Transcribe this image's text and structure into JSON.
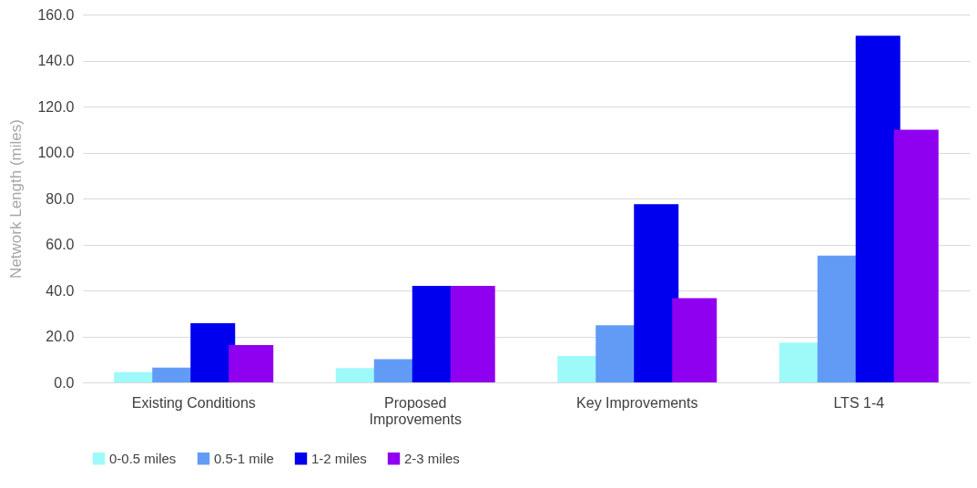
{
  "chart_data": {
    "type": "bar",
    "ylabel": "Network Length (miles)",
    "categories": [
      "Existing Conditions",
      "Proposed Improvements",
      "Key Improvements",
      "LTS 1-4"
    ],
    "series": [
      {
        "name": "0-0.5 miles",
        "color": "#9ef9f9",
        "values": [
          4.5,
          6.2,
          11.5,
          17.3
        ]
      },
      {
        "name": "0.5-1 mile",
        "color": "#619bf6",
        "values": [
          6.4,
          10.1,
          24.9,
          55.1
        ]
      },
      {
        "name": "1-2 miles",
        "color": "#0000ee",
        "values": [
          25.7,
          42.0,
          77.5,
          150.8
        ]
      },
      {
        "name": "2-3 miles",
        "color": "#8f00f0",
        "values": [
          16.2,
          42.0,
          36.6,
          109.9
        ]
      }
    ],
    "ylim": [
      0,
      160
    ],
    "yticks": [
      {
        "value": 0,
        "label": "0.0"
      },
      {
        "value": 20,
        "label": "20.0"
      },
      {
        "value": 40,
        "label": "40.0"
      },
      {
        "value": 60,
        "label": "60.0"
      },
      {
        "value": 80,
        "label": "80.0"
      },
      {
        "value": 100,
        "label": "100.0"
      },
      {
        "value": 120,
        "label": "120.0"
      },
      {
        "value": 140,
        "label": "140.0"
      },
      {
        "value": 160,
        "label": "160.0"
      }
    ],
    "grid": "y",
    "legend": "bottom"
  }
}
